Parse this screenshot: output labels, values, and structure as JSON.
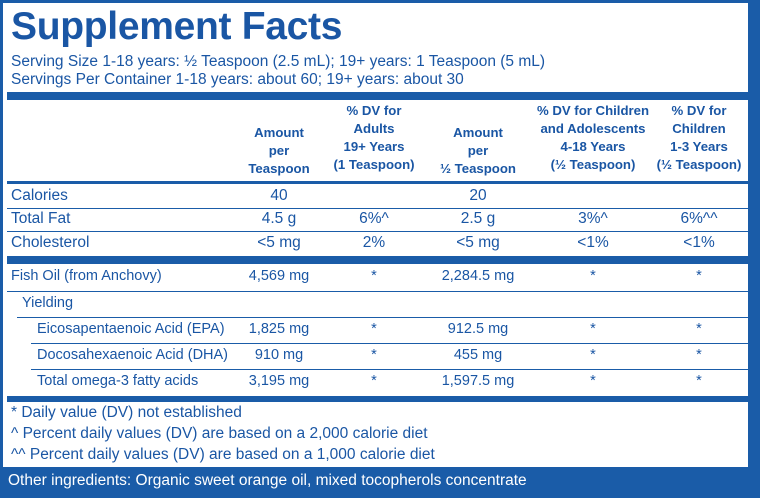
{
  "title": "Supplement Facts",
  "serving_size": "Serving Size 1-18 years: ½ Teaspoon (2.5 mL); 19+ years: 1 Teaspoon (5 mL)",
  "servings_per_container": "Servings Per Container 1-18 years: about 60; 19+ years: about 30",
  "columns": [
    {
      "lines": [
        "Amount",
        "per",
        "Teaspoon"
      ]
    },
    {
      "lines": [
        "% DV for",
        "Adults",
        "19+ Years",
        "(1 Teaspoon)"
      ]
    },
    {
      "lines": [
        "Amount",
        "per",
        "½ Teaspoon"
      ]
    },
    {
      "lines": [
        "% DV for Children",
        "and Adolescents",
        "4-18 Years",
        "(½ Teaspoon)"
      ]
    },
    {
      "lines": [
        "% DV for",
        "Children",
        "1-3 Years",
        "(½ Teaspoon)"
      ]
    }
  ],
  "rows": [
    {
      "label": "Calories",
      "values": [
        "40",
        "",
        "20",
        "",
        ""
      ]
    },
    {
      "label": "Total Fat",
      "values": [
        "4.5 g",
        "6%^",
        "2.5 g",
        "3%^",
        "6%^^"
      ]
    },
    {
      "label": "Cholesterol",
      "values": [
        "<5 mg",
        "2%",
        "<5 mg",
        "<1%",
        "<1%"
      ]
    },
    {
      "label": "Fish Oil (from Anchovy)",
      "values": [
        "4,569 mg",
        "*",
        "2,284.5 mg",
        "*",
        "*"
      ]
    },
    {
      "label": "Yielding",
      "values": [
        "",
        "",
        "",
        "",
        ""
      ]
    },
    {
      "label": "Eicosapentaenoic Acid (EPA)",
      "values": [
        "1,825 mg",
        "*",
        "912.5 mg",
        "*",
        "*"
      ]
    },
    {
      "label": "Docosahexaenoic Acid (DHA)",
      "values": [
        "910 mg",
        "*",
        "455 mg",
        "*",
        "*"
      ]
    },
    {
      "label": "Total omega-3 fatty acids",
      "values": [
        "3,195 mg",
        "*",
        "1,597.5 mg",
        "*",
        "*"
      ]
    }
  ],
  "footnotes": [
    "* Daily value (DV) not established",
    "^ Percent daily values (DV) are based on a 2,000 calorie diet",
    "^^ Percent daily values (DV) are based on a 1,000 calorie diet"
  ],
  "other_ingredients": "Other ingredients: Organic sweet orange oil, mixed tocopherols concentrate",
  "colors": {
    "brand_blue": "#1a56a4",
    "background": "#ffffff"
  }
}
